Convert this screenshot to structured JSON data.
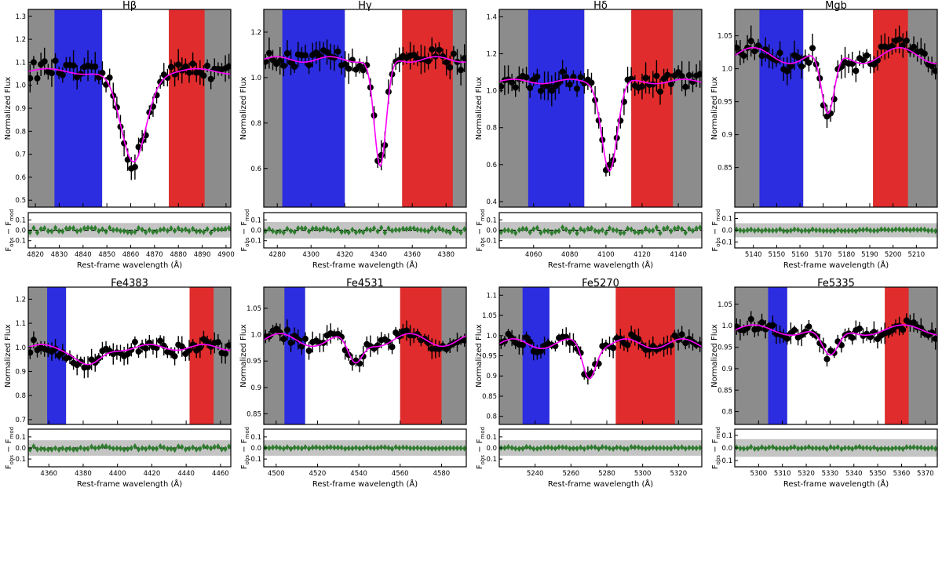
{
  "figure": {
    "ylabel_main": "Normalized Flux",
    "ylabel_resid": "F_obs − F_mod",
    "ylabel_resid_main": "F",
    "ylabel_resid_sub1": "obs",
    "ylabel_resid_mid": " − F",
    "ylabel_resid_sub2": "mod",
    "xlabel": "Rest-frame wavelength (Å)"
  },
  "colors": {
    "side": "#8c8c8c",
    "blue": "#2c2ce0",
    "red": "#e02c2c",
    "central": "#ffffff",
    "model": "#ff00ff",
    "points": "#000000",
    "resid": "#2e7d2e",
    "band": "#c4c4c4"
  },
  "chart_data": [
    {
      "type": "scatter",
      "title": "Hβ",
      "xlim": [
        4817,
        4902
      ],
      "ylim": [
        0.47,
        1.33
      ],
      "yticks": [
        0.5,
        0.6,
        0.7,
        0.8,
        0.9,
        1.0,
        1.1,
        1.2,
        1.3
      ],
      "xticks": [
        4820,
        4830,
        4840,
        4850,
        4860,
        4870,
        4880,
        4890,
        4900
      ],
      "blue_band": [
        4828,
        4848
      ],
      "red_band": [
        4876,
        4891
      ],
      "line": 4861,
      "cont": 1.06,
      "depth": 0.4,
      "width": 7.5,
      "resid_ylim": [
        -0.17,
        0.17
      ],
      "resid_yticks": [
        -0.1,
        0.0,
        0.1
      ],
      "resid_band": 0.07
    },
    {
      "type": "scatter",
      "title": "Hγ",
      "xlim": [
        4272,
        4392
      ],
      "ylim": [
        0.43,
        1.3
      ],
      "yticks": [
        0.6,
        0.8,
        1.0,
        1.2
      ],
      "xticks": [
        4280,
        4300,
        4320,
        4340,
        4360,
        4380
      ],
      "blue_band": [
        4283,
        4320
      ],
      "red_band": [
        4354,
        4384
      ],
      "line": 4341,
      "cont": 1.08,
      "depth": 0.48,
      "width": 5.0,
      "resid_ylim": [
        -0.17,
        0.17
      ],
      "resid_yticks": [
        -0.1,
        0.0,
        0.1
      ],
      "resid_band": 0.08
    },
    {
      "type": "scatter",
      "title": "Hδ",
      "xlim": [
        4041,
        4153
      ],
      "ylim": [
        0.37,
        1.44
      ],
      "yticks": [
        0.4,
        0.6,
        0.8,
        1.0,
        1.2,
        1.4
      ],
      "xticks": [
        4060,
        4080,
        4100,
        4120,
        4140
      ],
      "blue_band": [
        4057,
        4088
      ],
      "red_band": [
        4114,
        4137
      ],
      "line": 4102,
      "cont": 1.05,
      "depth": 0.48,
      "width": 6.0,
      "resid_ylim": [
        -0.17,
        0.17
      ],
      "resid_yticks": [
        -0.1,
        0.0,
        0.1
      ],
      "resid_band": 0.08
    },
    {
      "type": "scatter",
      "title": "Mgb",
      "xlim": [
        5132,
        5219
      ],
      "ylim": [
        0.79,
        1.09
      ],
      "yticks": [
        0.85,
        0.9,
        0.95,
        1.0,
        1.05
      ],
      "xticks": [
        5140,
        5150,
        5160,
        5170,
        5180,
        5190,
        5200,
        5210
      ],
      "blue_band": [
        5142.6,
        5161.4
      ],
      "red_band": [
        5191.4,
        5206.4
      ],
      "line": 5172,
      "cont": 1.02,
      "depth": 0.1,
      "width": 4.0,
      "resid_ylim": [
        -0.15,
        0.15
      ],
      "resid_yticks": [
        -0.1,
        0.0,
        0.1
      ],
      "resid_band": 0.06
    },
    {
      "type": "scatter",
      "title": "Fe4383",
      "xlim": [
        4348,
        4466
      ],
      "ylim": [
        0.68,
        1.25
      ],
      "yticks": [
        0.7,
        0.8,
        0.9,
        1.0,
        1.1,
        1.2
      ],
      "xticks": [
        4360,
        4380,
        4400,
        4420,
        4440,
        4460
      ],
      "blue_band": [
        4359,
        4370
      ],
      "red_band": [
        4442,
        4456
      ],
      "line": 4384,
      "cont": 1.0,
      "depth": 0.08,
      "width": 10.0,
      "resid_ylim": [
        -0.17,
        0.17
      ],
      "resid_yticks": [
        -0.1,
        0.0,
        0.1
      ],
      "resid_band": 0.07
    },
    {
      "type": "scatter",
      "title": "Fe4531",
      "xlim": [
        4494,
        4592
      ],
      "ylim": [
        0.83,
        1.09
      ],
      "yticks": [
        0.85,
        0.9,
        0.95,
        1.0,
        1.05
      ],
      "xticks": [
        4500,
        4520,
        4540,
        4560,
        4580
      ],
      "blue_band": [
        4504,
        4514
      ],
      "red_band": [
        4560,
        4580
      ],
      "line": 4538,
      "cont": 0.99,
      "depth": 0.05,
      "width": 5.0,
      "resid_ylim": [
        -0.17,
        0.17
      ],
      "resid_yticks": [
        -0.1,
        0.0,
        0.1
      ],
      "resid_band": 0.07
    },
    {
      "type": "scatter",
      "title": "Fe5270",
      "xlim": [
        5220,
        5333
      ],
      "ylim": [
        0.78,
        1.12
      ],
      "yticks": [
        0.8,
        0.85,
        0.9,
        0.95,
        1.0,
        1.05,
        1.1
      ],
      "xticks": [
        5240,
        5260,
        5280,
        5300,
        5320
      ],
      "blue_band": [
        5233,
        5248
      ],
      "red_band": [
        5285,
        5318
      ],
      "line": 5270,
      "cont": 0.98,
      "depth": 0.08,
      "width": 5.0,
      "resid_ylim": [
        -0.17,
        0.17
      ],
      "resid_yticks": [
        -0.1,
        0.0,
        0.1
      ],
      "resid_band": 0.07
    },
    {
      "type": "scatter",
      "title": "Fe5335",
      "xlim": [
        5290,
        5375
      ],
      "ylim": [
        0.77,
        1.09
      ],
      "yticks": [
        0.8,
        0.85,
        0.9,
        0.95,
        1.0,
        1.05
      ],
      "xticks": [
        5300,
        5310,
        5320,
        5330,
        5340,
        5350,
        5360,
        5370
      ],
      "blue_band": [
        5304,
        5312
      ],
      "red_band": [
        5353,
        5363
      ],
      "line": 5330,
      "cont": 0.99,
      "depth": 0.07,
      "width": 5.0,
      "resid_ylim": [
        -0.15,
        0.15
      ],
      "resid_yticks": [
        -0.1,
        0.0,
        0.1
      ],
      "resid_band": 0.07
    }
  ]
}
